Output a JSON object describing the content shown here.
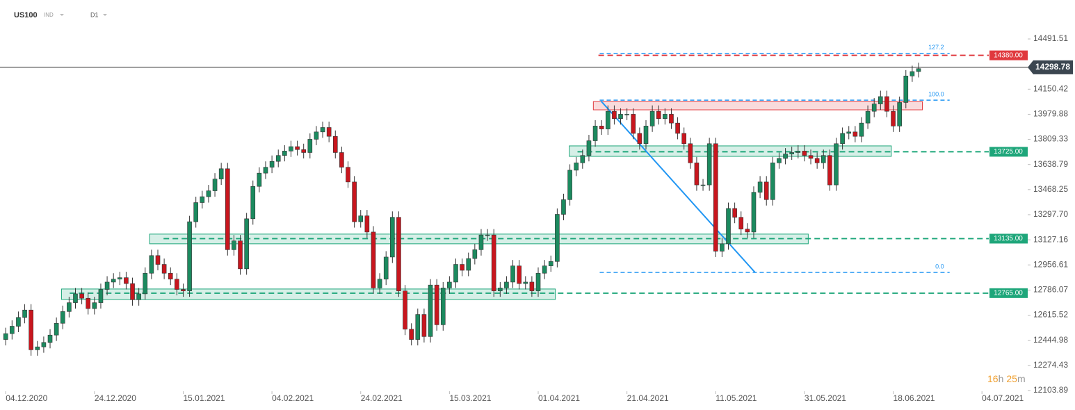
{
  "header": {
    "symbol": "US100",
    "market": "IND",
    "interval": "D1"
  },
  "chart_data": {
    "type": "candlestick",
    "open": [
      12450,
      12490,
      12540,
      12600,
      12650,
      12380,
      12400,
      12430,
      12480,
      12560,
      12640,
      12700,
      12760,
      12730,
      12660,
      12700,
      12790,
      12840,
      12860,
      12870,
      12830,
      12720,
      12760,
      12900,
      13020,
      12960,
      12900,
      12860,
      12790,
      12780,
      13250,
      13380,
      13420,
      13460,
      13540,
      13610,
      13060,
      13120,
      12930,
      13270,
      13490,
      13580,
      13620,
      13660,
      13700,
      13730,
      13760,
      13740,
      13720,
      13810,
      13860,
      13890,
      13830,
      13720,
      13620,
      13520,
      13250,
      13290,
      13180,
      12800,
      12860,
      13010,
      13280,
      12780,
      12520,
      12450,
      12620,
      12470,
      12820,
      12550,
      12800,
      12840,
      12960,
      12920,
      13000,
      13060,
      13160,
      13160,
      12780,
      12800,
      12840,
      12950,
      12830,
      12840,
      12780,
      12900,
      12950,
      12980,
      13300,
      13400,
      13600,
      13650,
      13700,
      13800,
      13900,
      13880,
      14000,
      13950,
      13980,
      13980,
      13850,
      13780,
      13900,
      14000,
      13950,
      13980,
      13920,
      13850,
      13780,
      13650,
      13500,
      13500,
      13780,
      13050,
      13100,
      13340,
      13280,
      13200,
      13180,
      13450,
      13520,
      13400,
      13650,
      13680,
      13710,
      13720,
      13730,
      13700,
      13680,
      13650,
      13700,
      13500,
      13780,
      13850,
      13860,
      13830,
      13920,
      14000,
      14050,
      14100,
      14000,
      13900,
      14060,
      14240,
      14270
    ],
    "high": [
      12530,
      12580,
      12640,
      12690,
      12690,
      12440,
      12470,
      12520,
      12600,
      12680,
      12740,
      12800,
      12800,
      12770,
      12740,
      12830,
      12880,
      12900,
      12910,
      12910,
      12870,
      12800,
      12940,
      13060,
      13060,
      13000,
      12940,
      12900,
      12830,
      13290,
      13420,
      13460,
      13500,
      13580,
      13650,
      13650,
      13160,
      13160,
      13310,
      13530,
      13620,
      13660,
      13700,
      13740,
      13770,
      13800,
      13800,
      13780,
      13850,
      13900,
      13930,
      13930,
      13870,
      13760,
      13660,
      13560,
      13330,
      13330,
      13220,
      12900,
      13050,
      13320,
      13320,
      12820,
      12560,
      12660,
      12660,
      12860,
      12860,
      12840,
      12880,
      13000,
      13000,
      13040,
      13100,
      13200,
      13200,
      13200,
      12840,
      12880,
      12990,
      12990,
      12880,
      12880,
      12940,
      12990,
      13020,
      13340,
      13440,
      13640,
      13690,
      13740,
      13840,
      13940,
      13940,
      14040,
      14040,
      14020,
      14020,
      14020,
      13890,
      13940,
      14040,
      14040,
      14020,
      14020,
      13960,
      13890,
      13820,
      13690,
      13540,
      13820,
      13820,
      13140,
      13380,
      13380,
      13320,
      13240,
      13490,
      13560,
      13560,
      13690,
      13720,
      13750,
      13760,
      13770,
      13770,
      13740,
      13720,
      13740,
      13740,
      13820,
      13890,
      13900,
      13900,
      13960,
      14040,
      14090,
      14140,
      14140,
      14040,
      14100,
      14280,
      14310,
      14330
    ],
    "low": [
      12410,
      12450,
      12500,
      12560,
      12340,
      12340,
      12360,
      12390,
      12440,
      12520,
      12600,
      12660,
      12690,
      12620,
      12620,
      12660,
      12750,
      12800,
      12820,
      12790,
      12680,
      12680,
      12720,
      12860,
      12920,
      12860,
      12820,
      12750,
      12740,
      12740,
      13210,
      13340,
      13380,
      13420,
      13500,
      13020,
      13020,
      12890,
      12890,
      13230,
      13450,
      13540,
      13580,
      13620,
      13660,
      13690,
      13700,
      13680,
      13680,
      13770,
      13820,
      13790,
      13680,
      13580,
      13480,
      13210,
      13210,
      13140,
      12760,
      12760,
      12820,
      12970,
      12740,
      12480,
      12410,
      12410,
      12430,
      12430,
      12510,
      12510,
      12760,
      12800,
      12880,
      12880,
      12960,
      13020,
      13120,
      12740,
      12740,
      12760,
      12800,
      12790,
      12790,
      12740,
      12740,
      12860,
      12910,
      12940,
      13260,
      13360,
      13560,
      13610,
      13660,
      13760,
      13840,
      13840,
      13910,
      13910,
      13940,
      13810,
      13740,
      13740,
      13860,
      13910,
      13910,
      13880,
      13810,
      13740,
      13610,
      13460,
      13460,
      13460,
      13010,
      13010,
      13060,
      13240,
      13160,
      13140,
      13140,
      13410,
      13360,
      13360,
      13610,
      13640,
      13670,
      13680,
      13660,
      13640,
      13610,
      13610,
      13460,
      13460,
      13740,
      13810,
      13790,
      13790,
      13880,
      13960,
      14010,
      13960,
      13860,
      13860,
      14020,
      14200,
      14230
    ],
    "close": [
      12490,
      12540,
      12600,
      12650,
      12380,
      12400,
      12430,
      12480,
      12560,
      12640,
      12700,
      12760,
      12730,
      12660,
      12700,
      12790,
      12840,
      12860,
      12870,
      12830,
      12720,
      12760,
      12900,
      13020,
      12960,
      12900,
      12860,
      12790,
      12780,
      13250,
      13380,
      13420,
      13460,
      13540,
      13610,
      13060,
      13120,
      12930,
      13270,
      13490,
      13580,
      13620,
      13660,
      13700,
      13730,
      13760,
      13740,
      13720,
      13810,
      13860,
      13890,
      13830,
      13720,
      13620,
      13520,
      13250,
      13290,
      13180,
      12800,
      12860,
      13010,
      13280,
      12780,
      12520,
      12450,
      12620,
      12470,
      12820,
      12550,
      12800,
      12840,
      12960,
      12920,
      13000,
      13060,
      13160,
      13160,
      12780,
      12800,
      12840,
      12950,
      12830,
      12840,
      12780,
      12900,
      12950,
      12980,
      13300,
      13400,
      13600,
      13650,
      13700,
      13800,
      13900,
      13880,
      14000,
      13950,
      13980,
      13980,
      13850,
      13780,
      13900,
      14000,
      13950,
      13980,
      13920,
      13850,
      13780,
      13650,
      13500,
      13500,
      13780,
      13050,
      13100,
      13340,
      13280,
      13200,
      13180,
      13450,
      13520,
      13400,
      13650,
      13680,
      13710,
      13720,
      13730,
      13700,
      13680,
      13650,
      13700,
      13500,
      13780,
      13850,
      13860,
      13830,
      13920,
      14000,
      14050,
      14100,
      14000,
      13900,
      14060,
      14240,
      14270,
      14290
    ],
    "xlim": [
      -0.9,
      161
    ],
    "ylim": [
      12042,
      14756
    ],
    "xticks": [
      {
        "value": 0,
        "label": "04.12.2020"
      },
      {
        "value": 14,
        "label": "24.12.2020"
      },
      {
        "value": 28,
        "label": "15.01.2021"
      },
      {
        "value": 42,
        "label": "04.02.2021"
      },
      {
        "value": 56,
        "label": "24.02.2021"
      },
      {
        "value": 70,
        "label": "15.03.2021"
      },
      {
        "value": 84,
        "label": "01.04.2021"
      },
      {
        "value": 98,
        "label": "21.04.2021"
      },
      {
        "value": 112,
        "label": "11.05.2021"
      },
      {
        "value": 126,
        "label": "31.05.2021"
      },
      {
        "value": 140,
        "label": "18.06.2021"
      },
      {
        "value": 154,
        "label": "04.07.2021"
      }
    ],
    "yticks": [
      14491.51,
      14150.42,
      13979.88,
      13809.33,
      13638.79,
      13468.25,
      {
        "value": 13297.7,
        "label": "13297.70"
      },
      13127.16,
      12956.61,
      12786.07,
      12615.52,
      12444.98,
      12274.43,
      12103.89
    ],
    "up_color": "#1c8a5f",
    "down_color": "#c8161e",
    "wick_color": "#333333",
    "price": 14298.78,
    "levels": [
      {
        "value": 14380,
        "label": "14380.00",
        "color": "#e0393e",
        "from": 93.5
      },
      {
        "value": 13725,
        "label": "13725.00",
        "color": "#1ea67a",
        "from": 90.2
      },
      {
        "value": 13135,
        "label": "13135.00",
        "color": "#1ea67a",
        "from": 24.9
      },
      {
        "value": 12765,
        "label": "12765.00",
        "color": "#1ea67a",
        "from": 10.1
      }
    ],
    "zones": [
      {
        "from": 92.7,
        "to": 144.6,
        "low": 14010,
        "high": 14066,
        "color": "#e0393e"
      },
      {
        "from": 88.9,
        "to": 139.7,
        "low": 13694,
        "high": 13765,
        "color": "#1ea67a"
      },
      {
        "from": 22.7,
        "to": 126.6,
        "low": 13100,
        "high": 13166,
        "color": "#1ea67a"
      },
      {
        "from": 8.8,
        "to": 86.7,
        "low": 12722,
        "high": 12793,
        "color": "#1ea67a"
      }
    ],
    "fib": [
      {
        "value": 127.2,
        "price": 14394
      },
      {
        "value": 100,
        "label": "100.0",
        "price": 14076
      },
      {
        "value": 0,
        "label": "0.0",
        "price": 12906
      }
    ],
    "fib_range": [
      93.7,
      148.9
    ],
    "fib_color": "#2196f3",
    "trendline": {
      "x": [
        93.9,
        118.2
      ],
      "y": [
        14070,
        12906
      ]
    },
    "timer": {
      "hours": 16,
      "hours_unit": "h",
      "minutes": 25,
      "minutes_unit": "m"
    }
  }
}
